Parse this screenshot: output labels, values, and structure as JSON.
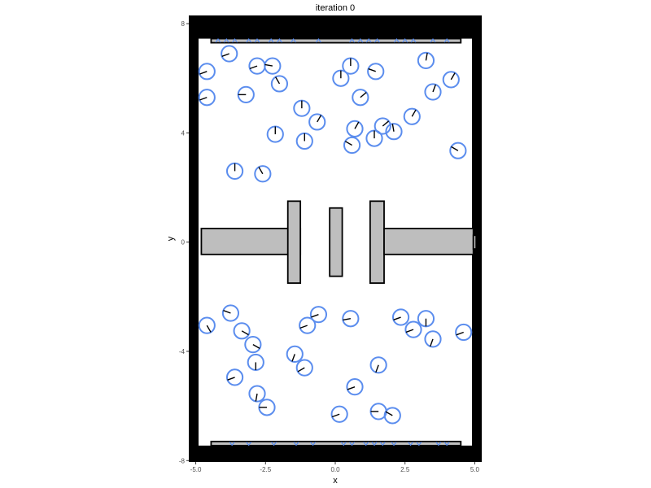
{
  "chart_data": {
    "type": "scatter",
    "title": "iteration 0",
    "xlabel": "x",
    "ylabel": "y",
    "xlim": [
      -5.25,
      5.25
    ],
    "ylim": [
      -8.05,
      8.3
    ],
    "xticks": [
      -5.0,
      -2.5,
      0.0,
      2.5,
      5.0
    ],
    "xtick_labels": [
      "-5.0",
      "-2.5",
      "0.0",
      "2.5",
      "5.0"
    ],
    "yticks": [
      -8,
      -4,
      0,
      4,
      8
    ],
    "ytick_labels": [
      "-8",
      "-4",
      "0",
      "4",
      "8"
    ],
    "grid": false,
    "colors": {
      "agent": "#5b8dee",
      "wall": "#000000",
      "obstacle_fill": "#bebebe",
      "obstacle_stroke": "#000000"
    },
    "walls": [
      {
        "x0": -5.5,
        "x1": -4.9,
        "y0": -8.2,
        "y1": 8.3
      },
      {
        "x0": 4.9,
        "x1": 5.5,
        "y0": -8.2,
        "y1": 8.3
      },
      {
        "x0": -5.5,
        "x1": 5.5,
        "y0": 7.45,
        "y1": 8.3
      },
      {
        "x0": -5.5,
        "x1": 5.5,
        "y0": -8.2,
        "y1": -7.45
      }
    ],
    "obstacles": [
      {
        "x0": -4.8,
        "x1": -1.25,
        "y0": -0.45,
        "y1": 0.5
      },
      {
        "x0": -1.7,
        "x1": -1.25,
        "y0": -1.5,
        "y1": 1.5
      },
      {
        "x0": -0.2,
        "x1": 0.25,
        "y0": -1.25,
        "y1": 1.25
      },
      {
        "x0": 1.25,
        "x1": 1.75,
        "y0": -1.5,
        "y1": 1.5
      },
      {
        "x0": 1.75,
        "x1": 4.95,
        "y0": -0.45,
        "y1": 0.5
      },
      {
        "x0": 4.95,
        "x1": 5.05,
        "y0": -0.25,
        "y1": 0.25
      },
      {
        "x0": -4.45,
        "x1": 4.5,
        "y0": 7.3,
        "y1": 7.45
      },
      {
        "x0": -4.45,
        "x1": 4.5,
        "y0": -7.45,
        "y1": -7.3
      }
    ],
    "agent_radius": 0.28,
    "agents": [
      {
        "x": -3.8,
        "y": 6.9,
        "heading": 200
      },
      {
        "x": -4.6,
        "y": 6.25,
        "heading": 200
      },
      {
        "x": -2.8,
        "y": 6.45,
        "heading": 200
      },
      {
        "x": -2.25,
        "y": 6.45,
        "heading": 170
      },
      {
        "x": -2.0,
        "y": 5.8,
        "heading": 120
      },
      {
        "x": -4.6,
        "y": 5.3,
        "heading": 200
      },
      {
        "x": -3.2,
        "y": 5.4,
        "heading": 180
      },
      {
        "x": 0.55,
        "y": 6.45,
        "heading": 90
      },
      {
        "x": 0.2,
        "y": 6.0,
        "heading": 90
      },
      {
        "x": 1.45,
        "y": 6.25,
        "heading": 160
      },
      {
        "x": 3.25,
        "y": 6.65,
        "heading": 80
      },
      {
        "x": 4.15,
        "y": 5.95,
        "heading": 60
      },
      {
        "x": 3.5,
        "y": 5.5,
        "heading": 70
      },
      {
        "x": 0.9,
        "y": 5.3,
        "heading": 40
      },
      {
        "x": -1.2,
        "y": 4.9,
        "heading": 90
      },
      {
        "x": -0.65,
        "y": 4.4,
        "heading": 60
      },
      {
        "x": 0.7,
        "y": 4.15,
        "heading": 60
      },
      {
        "x": 1.7,
        "y": 4.25,
        "heading": 40
      },
      {
        "x": 2.1,
        "y": 4.05,
        "heading": 100
      },
      {
        "x": 2.75,
        "y": 4.6,
        "heading": 60
      },
      {
        "x": -2.15,
        "y": 3.95,
        "heading": 90
      },
      {
        "x": -1.1,
        "y": 3.7,
        "heading": 90
      },
      {
        "x": 0.6,
        "y": 3.55,
        "heading": 150
      },
      {
        "x": 1.4,
        "y": 3.8,
        "heading": 90
      },
      {
        "x": 4.4,
        "y": 3.35,
        "heading": 150
      },
      {
        "x": -3.6,
        "y": 2.6,
        "heading": 90
      },
      {
        "x": -2.6,
        "y": 2.5,
        "heading": 120
      },
      {
        "x": -3.75,
        "y": -2.6,
        "heading": 160
      },
      {
        "x": -0.6,
        "y": -2.65,
        "heading": 200
      },
      {
        "x": -4.6,
        "y": -3.05,
        "heading": 300
      },
      {
        "x": -3.35,
        "y": -3.25,
        "heading": 330
      },
      {
        "x": -1.0,
        "y": -3.05,
        "heading": 200
      },
      {
        "x": 0.55,
        "y": -2.8,
        "heading": 190
      },
      {
        "x": 2.35,
        "y": -2.75,
        "heading": 200
      },
      {
        "x": 3.25,
        "y": -2.8,
        "heading": 270
      },
      {
        "x": 2.8,
        "y": -3.2,
        "heading": 200
      },
      {
        "x": 3.5,
        "y": -3.55,
        "heading": 250
      },
      {
        "x": 4.6,
        "y": -3.3,
        "heading": 200
      },
      {
        "x": -2.95,
        "y": -3.75,
        "heading": 330
      },
      {
        "x": -2.85,
        "y": -4.4,
        "heading": 270
      },
      {
        "x": -1.45,
        "y": -4.1,
        "heading": 250
      },
      {
        "x": -1.1,
        "y": -4.6,
        "heading": 210
      },
      {
        "x": 1.55,
        "y": -4.5,
        "heading": 250
      },
      {
        "x": -3.6,
        "y": -4.95,
        "heading": 200
      },
      {
        "x": 0.7,
        "y": -5.3,
        "heading": 200
      },
      {
        "x": -2.8,
        "y": -5.55,
        "heading": 260
      },
      {
        "x": -2.45,
        "y": -6.05,
        "heading": 180
      },
      {
        "x": 0.15,
        "y": -6.3,
        "heading": 200
      },
      {
        "x": 1.55,
        "y": -6.2,
        "heading": 180
      },
      {
        "x": 2.05,
        "y": -6.35,
        "heading": 150
      }
    ],
    "top_bar_marks": [
      -4.2,
      -3.9,
      -3.6,
      -3.1,
      -2.8,
      -2.3,
      -2.0,
      -1.5,
      -0.6,
      0.6,
      0.9,
      1.2,
      1.5,
      2.2,
      2.5,
      2.8,
      3.5,
      4.0
    ],
    "bottom_bar_marks": [
      -3.7,
      -3.1,
      -2.2,
      -1.4,
      -0.8,
      0.3,
      0.6,
      1.1,
      1.4,
      1.7,
      2.1,
      2.7,
      3.0,
      3.7,
      4.0
    ]
  }
}
